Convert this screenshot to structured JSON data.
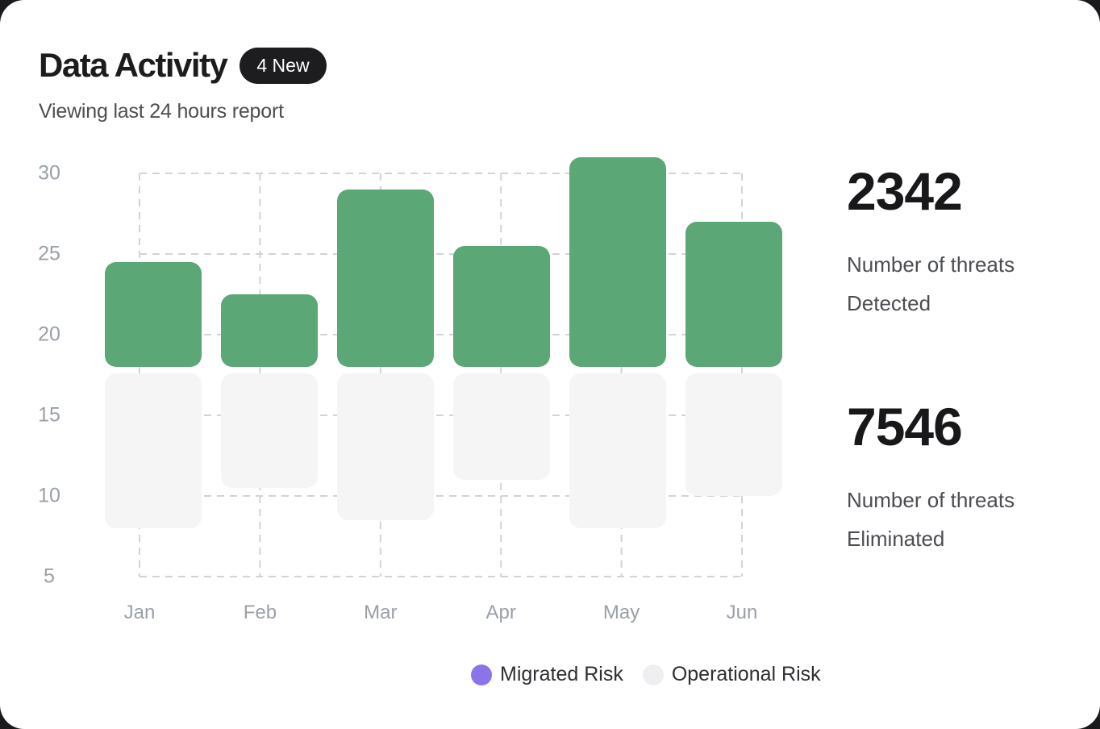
{
  "header": {
    "title": "Data Activity",
    "badge": "4 New",
    "subtitle": "Viewing last 24 hours report"
  },
  "chart_data": {
    "type": "bar",
    "title": "Data Activity",
    "categories": [
      "Jan",
      "Feb",
      "Mar",
      "Apr",
      "May",
      "Jun"
    ],
    "series": [
      {
        "name": "Migrated Risk",
        "bar_color": "#5ba876",
        "direction": "up",
        "baseline": 18,
        "values": [
          24.5,
          22.5,
          29,
          25.5,
          31,
          27
        ]
      },
      {
        "name": "Operational Risk",
        "bar_color": "#f5f5f6",
        "direction": "down",
        "baseline": 17.6,
        "values": [
          8,
          10.5,
          8.5,
          11,
          8,
          10
        ]
      }
    ],
    "ylim": [
      5,
      30
    ],
    "yticks": [
      30,
      25,
      20,
      15,
      10,
      5
    ],
    "grid": "dashed",
    "legend_position": "bottom-right"
  },
  "legend": {
    "items": [
      {
        "label": "Migrated Risk",
        "color": "#8b74e9"
      },
      {
        "label": "Operational Risk",
        "color": "#efeff1"
      }
    ]
  },
  "stats": [
    {
      "value": "2342",
      "label_lines": [
        "Number of threats",
        "Detected"
      ]
    },
    {
      "value": "7546",
      "label_lines": [
        "Number of threats",
        "Eliminated"
      ]
    }
  ],
  "colors": {
    "bar_green": "#5ba876",
    "bar_gray": "#f5f5f6",
    "legend_purple": "#8b74e9",
    "badge_bg": "#1d1d1f",
    "page_bg": "#1a1a1c",
    "grid": "#d2d3d6",
    "axis_text": "#9aa0a9"
  }
}
